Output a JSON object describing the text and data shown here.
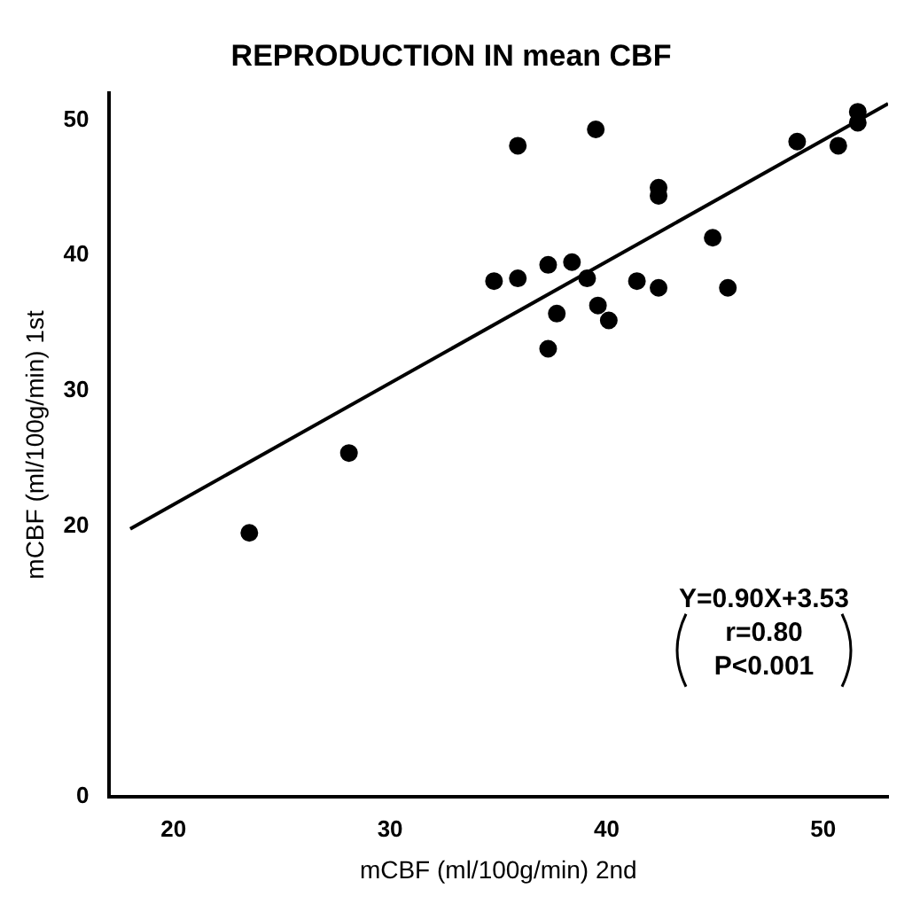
{
  "chart_data": {
    "type": "scatter",
    "title": "REPRODUCTION IN mean CBF",
    "xlabel": "mCBF (ml/100g/min) 2nd",
    "ylabel": "mCBF (ml/100g/min) 1st",
    "xlim": [
      17,
      53
    ],
    "xticks": [
      20,
      30,
      40,
      50
    ],
    "ylim": [
      0,
      52
    ],
    "yticks": [
      0,
      20,
      30,
      40,
      50
    ],
    "grid": false,
    "legend": false,
    "marker": "circle",
    "series": [
      {
        "color": "#000000",
        "x": [
          35.9,
          39.5,
          42.4,
          42.4,
          48.8,
          50.7,
          51.6,
          51.6,
          44.9,
          37.3,
          38.4,
          34.8,
          35.9,
          39.1,
          41.4,
          42.4,
          45.6,
          39.6,
          37.7,
          40.1,
          37.3,
          28.1,
          23.5
        ],
        "values": [
          48.1,
          49.3,
          45.0,
          44.4,
          48.4,
          48.1,
          50.6,
          49.8,
          41.3,
          39.3,
          39.5,
          38.1,
          38.3,
          38.3,
          38.1,
          37.6,
          37.6,
          36.3,
          35.7,
          35.2,
          33.1,
          25.4,
          19.5
        ]
      },
      {
        "type": "line",
        "color": "#000000",
        "marker": "none",
        "x": [
          18,
          53
        ],
        "values": [
          19.8,
          51.2
        ]
      }
    ],
    "annotations": [
      "Y=0.90X+3.53",
      "r=0.80",
      "P<0.001"
    ]
  }
}
